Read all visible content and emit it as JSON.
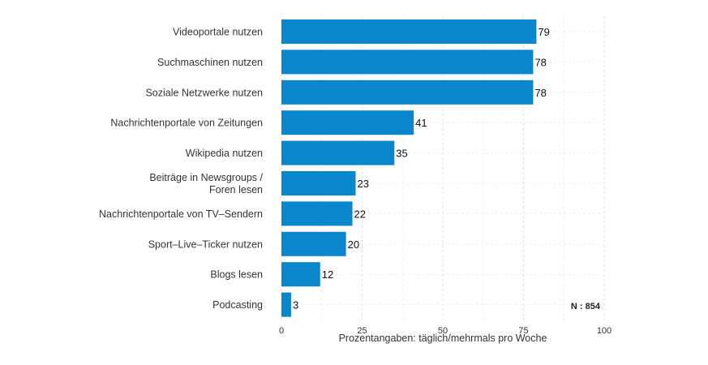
{
  "chart_data": {
    "type": "bar",
    "orientation": "horizontal",
    "categories": [
      "Videoportale nutzen",
      "Suchmaschinen nutzen",
      "Soziale Netzwerke nutzen",
      "Nachrichtenportale von Zeitungen",
      "Wikipedia nutzen",
      [
        "Beiträge in Newsgroups /",
        "Foren lesen"
      ],
      "Nachrichtenportale von TV–Sendern",
      "Sport–Live–Ticker nutzen",
      "Blogs lesen",
      "Podcasting"
    ],
    "values": [
      79,
      78,
      78,
      41,
      35,
      23,
      22,
      20,
      12,
      3
    ],
    "xlim": [
      0,
      100
    ],
    "xticks": [
      0,
      25,
      50,
      75,
      100
    ],
    "xlabel": "Prozentangaben: täglich/mehrmals pro Woche",
    "ylabel": "",
    "annotation": "N : 854",
    "bar_color": "#0a86cc",
    "grid": true
  }
}
